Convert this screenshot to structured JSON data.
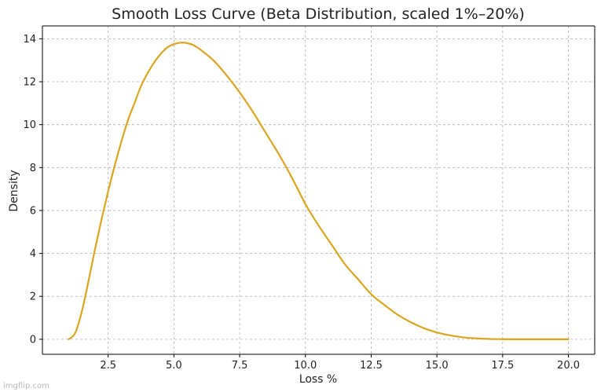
{
  "chart_data": {
    "type": "line",
    "title": "Smooth Loss Curve (Beta Distribution, scaled 1%–20%)",
    "xlabel": "Loss %",
    "ylabel": "Density",
    "xlim": [
      0.0,
      21.0
    ],
    "ylim": [
      -0.7,
      14.6
    ],
    "xticks": [
      2.5,
      5.0,
      7.5,
      10.0,
      12.5,
      15.0,
      17.5,
      20.0
    ],
    "xtick_labels": [
      "2.5",
      "5.0",
      "7.5",
      "10.0",
      "12.5",
      "15.0",
      "17.5",
      "20.0"
    ],
    "yticks": [
      0,
      2,
      4,
      6,
      8,
      10,
      12,
      14
    ],
    "ytick_labels": [
      "0",
      "2",
      "4",
      "6",
      "8",
      "10",
      "12",
      "14"
    ],
    "grid": true,
    "series": [
      {
        "color": "#DAA520",
        "x": [
          1.0,
          1.25,
          1.5,
          1.75,
          2.0,
          2.25,
          2.5,
          2.75,
          3.0,
          3.25,
          3.5,
          3.75,
          4.0,
          4.25,
          4.5,
          4.75,
          5.0,
          5.25,
          5.5,
          5.75,
          6.0,
          6.5,
          7.0,
          7.5,
          8.0,
          8.5,
          9.0,
          9.5,
          10.0,
          10.5,
          11.0,
          11.5,
          12.0,
          12.5,
          13.0,
          13.5,
          14.0,
          14.5,
          15.0,
          15.5,
          16.0,
          16.5,
          17.0,
          17.5,
          18.0,
          18.5,
          19.0,
          19.5,
          20.0
        ],
        "y": [
          0.0,
          0.3,
          1.3,
          2.7,
          4.2,
          5.6,
          6.9,
          8.1,
          9.2,
          10.2,
          11.0,
          11.8,
          12.4,
          12.9,
          13.3,
          13.6,
          13.75,
          13.82,
          13.8,
          13.7,
          13.5,
          13.0,
          12.3,
          11.5,
          10.6,
          9.6,
          8.6,
          7.5,
          6.3,
          5.3,
          4.4,
          3.5,
          2.8,
          2.1,
          1.6,
          1.15,
          0.8,
          0.52,
          0.32,
          0.18,
          0.09,
          0.04,
          0.015,
          0.005,
          0.0,
          0.0,
          0.0,
          0.0,
          0.0
        ]
      }
    ]
  },
  "watermark": "imgflip.com"
}
